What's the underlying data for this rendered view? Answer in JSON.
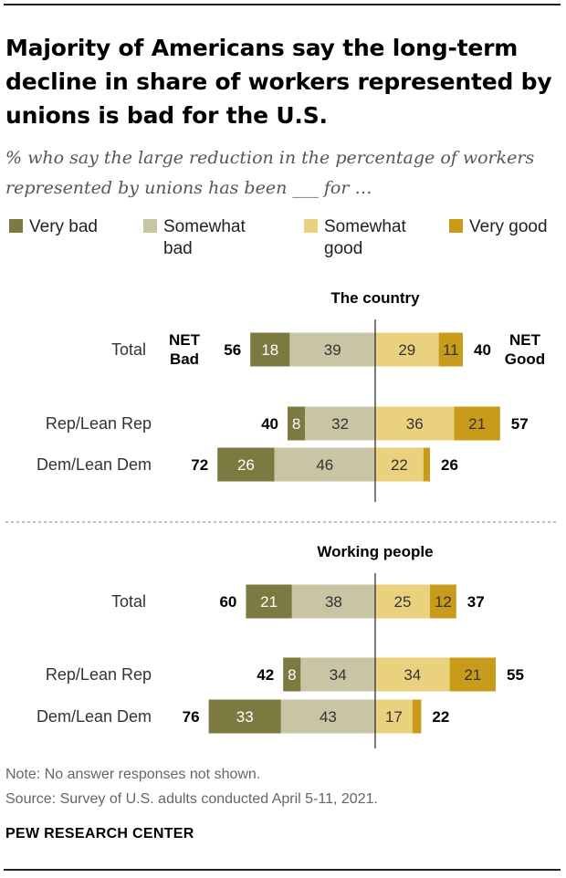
{
  "title": "Majority of Americans say the long-term decline in share of workers represented by unions is bad for the U.S.",
  "subtitle": "% who say the large reduction in the percentage of workers represented by unions has been ___ for …",
  "legend": [
    {
      "line1": "Very bad",
      "line2": "",
      "color": "#7d7a41"
    },
    {
      "line1": "Somewhat",
      "line2": "bad",
      "color": "#c8c5a5"
    },
    {
      "line1": "Somewhat",
      "line2": "good",
      "color": "#ead17d"
    },
    {
      "line1": "Very good",
      "line2": "",
      "color": "#c99b1b"
    }
  ],
  "net_labels": {
    "bad_line1": "NET",
    "bad_line2": "Bad",
    "good_line1": "NET",
    "good_line2": "Good"
  },
  "notes": {
    "note": "Note: No answer responses not shown.",
    "source": "Source: Survey of U.S. adults conducted April 5-11, 2021."
  },
  "brand": "PEW RESEARCH CENTER",
  "chart_data": [
    {
      "type": "bar",
      "title": "The country",
      "categories": [
        "Total",
        "Rep/Lean Rep",
        "Dem/Lean Dem"
      ],
      "series": [
        {
          "name": "Very bad",
          "values": [
            18,
            8,
            26
          ]
        },
        {
          "name": "Somewhat bad",
          "values": [
            39,
            32,
            46
          ]
        },
        {
          "name": "Somewhat good",
          "values": [
            29,
            36,
            22
          ]
        },
        {
          "name": "Very good",
          "values": [
            11,
            21,
            3
          ]
        }
      ],
      "net_bad": [
        56,
        40,
        72
      ],
      "net_good": [
        40,
        57,
        26
      ],
      "value_labels": {
        "very_bad": [
          "18",
          "8",
          "26"
        ],
        "somewhat_bad": [
          "39",
          "32",
          "46"
        ],
        "somewhat_good": [
          "29",
          "36",
          "22"
        ],
        "very_good": [
          "11",
          "21",
          ""
        ]
      }
    },
    {
      "type": "bar",
      "title": "Working people",
      "categories": [
        "Total",
        "Rep/Lean Rep",
        "Dem/Lean Dem"
      ],
      "series": [
        {
          "name": "Very bad",
          "values": [
            21,
            8,
            33
          ]
        },
        {
          "name": "Somewhat bad",
          "values": [
            38,
            34,
            43
          ]
        },
        {
          "name": "Somewhat good",
          "values": [
            25,
            34,
            17
          ]
        },
        {
          "name": "Very good",
          "values": [
            12,
            21,
            4
          ]
        }
      ],
      "net_bad": [
        60,
        42,
        76
      ],
      "net_good": [
        37,
        55,
        22
      ],
      "value_labels": {
        "very_bad": [
          "21",
          "8",
          "33"
        ],
        "somewhat_bad": [
          "38",
          "34",
          "43"
        ],
        "somewhat_good": [
          "25",
          "34",
          "17"
        ],
        "very_good": [
          "12",
          "21",
          ""
        ]
      }
    }
  ]
}
